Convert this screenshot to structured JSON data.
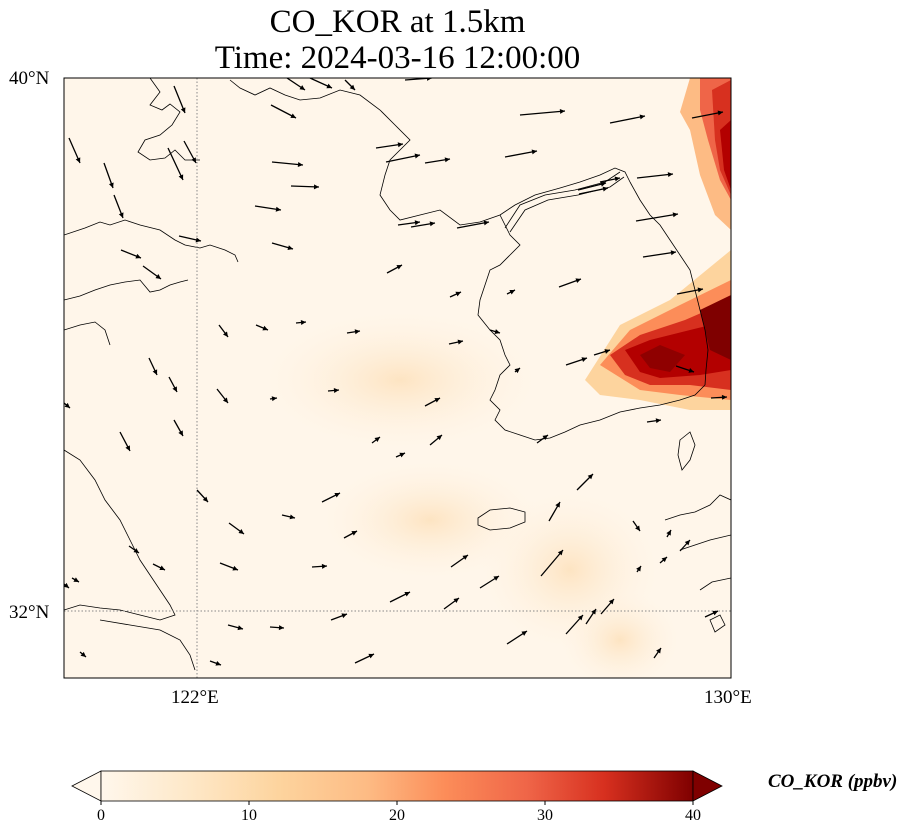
{
  "title_line1": "CO_KOR at 1.5km",
  "title_line2": "Time: 2024-03-16 12:00:00",
  "axes": {
    "lat_ticks": [
      {
        "value": 40,
        "label": "40°N"
      },
      {
        "value": 32,
        "label": "32°N"
      }
    ],
    "lon_ticks": [
      {
        "value": 122,
        "label": "122°E"
      },
      {
        "value": 130,
        "label": "130°E"
      }
    ],
    "lon_range": [
      120,
      130
    ],
    "lat_range": [
      31,
      40
    ],
    "gridlines": "dotted"
  },
  "colorbar": {
    "label": "CO_KOR (ppbv)",
    "colormap": "OrRd",
    "range": [
      0,
      40
    ],
    "extend": "both",
    "ticks": [
      {
        "value": 0,
        "label": "0"
      },
      {
        "value": 10,
        "label": "10"
      },
      {
        "value": 20,
        "label": "20"
      },
      {
        "value": 30,
        "label": "30"
      },
      {
        "value": 40,
        "label": "40"
      }
    ]
  },
  "colors": {
    "background_low": "#fff7ec",
    "mid": "#fdd49e",
    "high": "#d7301f",
    "max": "#7f0000",
    "coastline": "#000000"
  }
}
